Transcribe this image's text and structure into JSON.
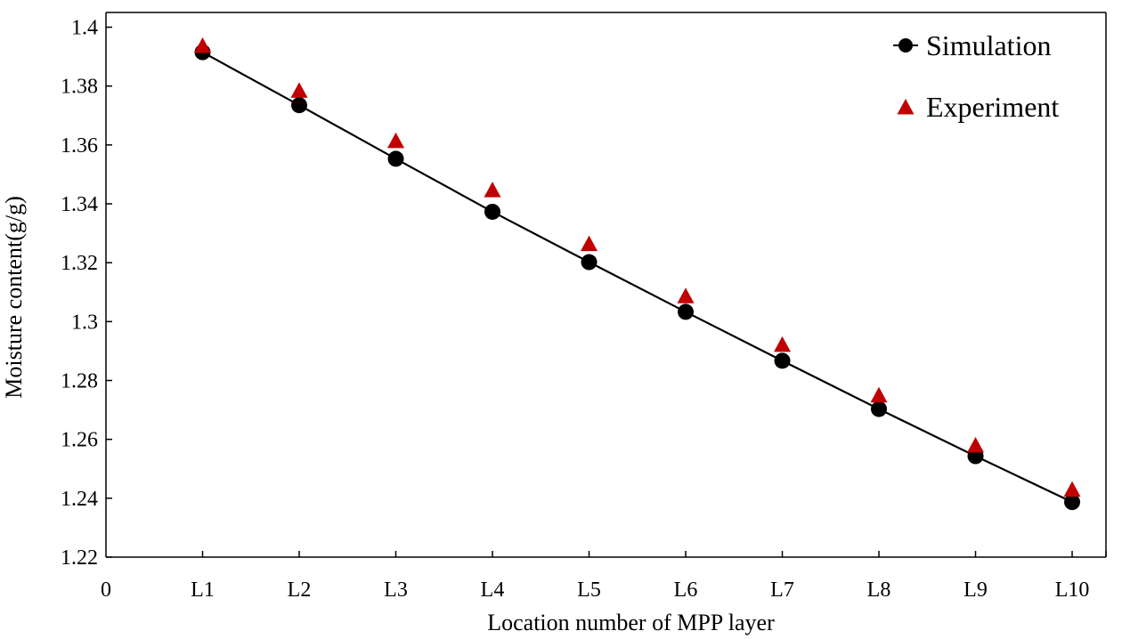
{
  "chart_data": {
    "type": "line",
    "title": "",
    "xlabel": "Location number of MPP layer",
    "ylabel": "Moisture content(g/g)",
    "x_ticks": [
      "0",
      "L1",
      "L2",
      "L3",
      "L4",
      "L5",
      "L6",
      "L7",
      "L8",
      "L9",
      "L10"
    ],
    "xlim": [
      0,
      10.35
    ],
    "ylim": [
      1.22,
      1.405
    ],
    "y_ticks": [
      1.22,
      1.24,
      1.26,
      1.28,
      1.3,
      1.32,
      1.34,
      1.36,
      1.38,
      1.4
    ],
    "y_tick_labels": [
      "1.22",
      "1.24",
      "1.26",
      "1.28",
      "1.3",
      "1.32",
      "1.34",
      "1.36",
      "1.38",
      "1.4"
    ],
    "grid": false,
    "legend_position": "top-right",
    "series": [
      {
        "name": "Simulation",
        "marker": "circle",
        "line": true,
        "color": "#000000",
        "x": [
          1,
          2,
          3,
          4,
          5,
          6,
          7,
          8,
          9,
          10
        ],
        "values": [
          1.3915,
          1.3735,
          1.3553,
          1.3373,
          1.3202,
          1.3033,
          1.2867,
          1.2703,
          1.2543,
          1.2387
        ]
      },
      {
        "name": "Experiment",
        "marker": "triangle",
        "line": false,
        "color": "#c00000",
        "x": [
          1,
          2,
          3,
          4,
          5,
          6,
          7,
          8,
          9,
          10
        ],
        "values": [
          1.3935,
          1.3783,
          1.3612,
          1.3445,
          1.3262,
          1.3085,
          1.292,
          1.2748,
          1.2578,
          1.2428
        ]
      }
    ]
  }
}
